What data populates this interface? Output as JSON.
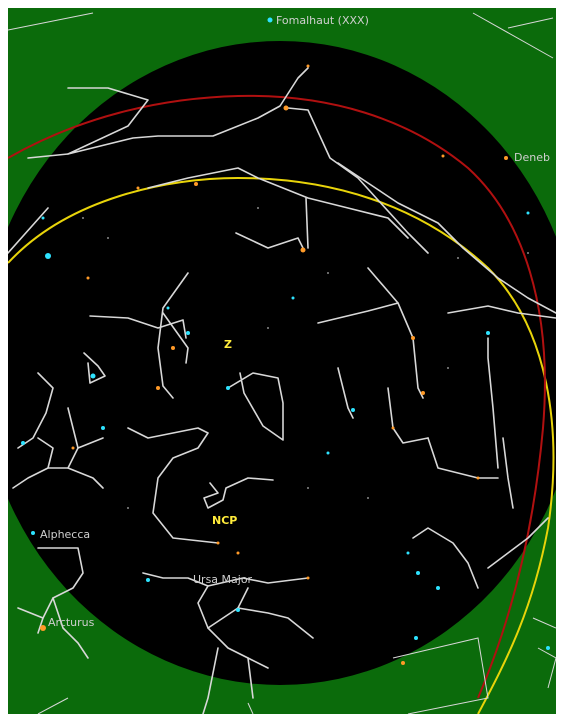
{
  "labels": {
    "fomalhaut": "Fomalhaut (XXX)",
    "deneb": "Deneb",
    "zenith": "Z",
    "ncp": "NCP",
    "alphecca": "Alphecca",
    "ursa_major": "Ursa Major",
    "arcturus": "Arcturus"
  },
  "colors": {
    "horizon": "#0b6b0b",
    "sky": "#000000",
    "constellation_lines": "#d8d8d8",
    "ecliptic": "#b01010",
    "celestial_equator": "#e8d40a",
    "star_blue": "#2ee3ff",
    "star_orange": "#ff9a28",
    "label_yellow": "#ffeb3b"
  }
}
